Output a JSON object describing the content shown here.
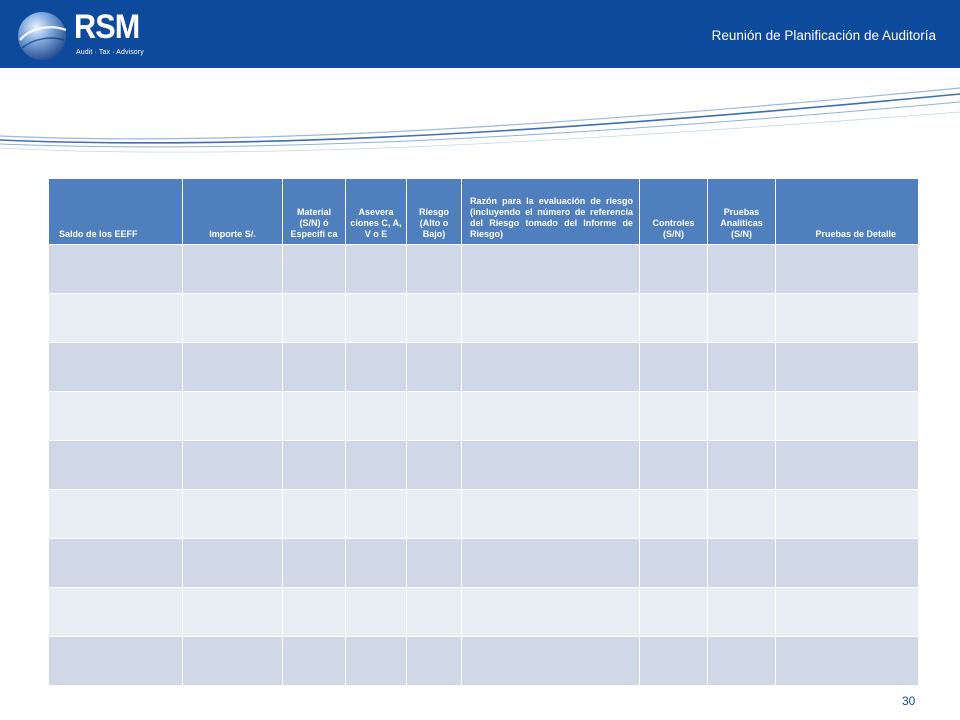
{
  "header": {
    "brand": "RSM",
    "tagline": "Audit · Tax · Advisory",
    "title": "Reunión de Planificación de Auditoría"
  },
  "colors": {
    "header_bar": "#0d4a9c",
    "table_header": "#4f7fbd",
    "row_dark": "#d0d8e8",
    "row_light": "#e9edf4"
  },
  "table": {
    "columns": [
      "Saldo de los EEFF",
      "Importe S/.",
      "Material (S/N) ó Especifi ca",
      "Asevera ciones C, A, V o E",
      "Riesgo (Alto o Bajo)",
      "Razón para la evaluación de riesgo (incluyendo el número de referencia del Riesgo tomado del Informe de Riesgo)",
      "Controles (S/N)",
      "Pruebas Analíticas (S/N)",
      "Pruebas de Detalle"
    ],
    "row_count": 9
  },
  "footer": {
    "page_number": "30"
  }
}
